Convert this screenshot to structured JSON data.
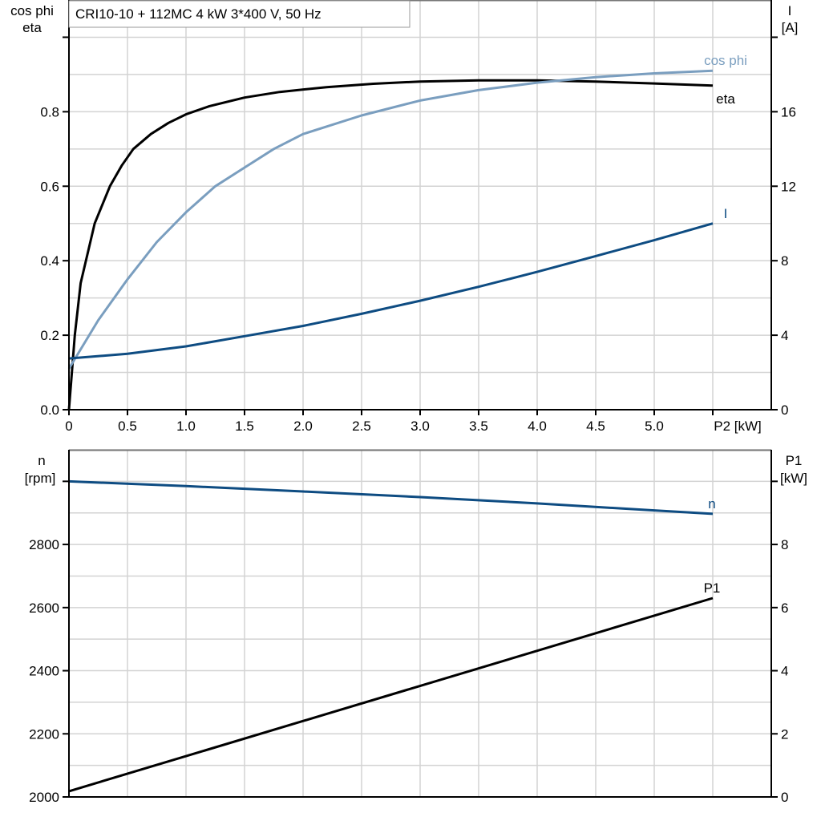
{
  "chart_data": [
    {
      "type": "line",
      "title": "CRI10-10 + 112MC   4 kW   3*400 V, 50 Hz",
      "xlabel": "P2 [kW]",
      "ylabel": [
        "cos phi",
        "eta"
      ],
      "y2label": [
        "I",
        "[A]"
      ],
      "xlim": [
        0,
        6
      ],
      "ylim": [
        0,
        1.1
      ],
      "y2lim": [
        0,
        22
      ],
      "xticks": [
        "0",
        "0.5",
        "1.0",
        "1.5",
        "2.0",
        "2.5",
        "3.0",
        "3.5",
        "4.0",
        "4.5",
        "5.0"
      ],
      "xtick_values": [
        0,
        0.5,
        1.0,
        1.5,
        2.0,
        2.5,
        3.0,
        3.5,
        4.0,
        4.5,
        5.0
      ],
      "yticks": [
        "0.0",
        "0.2",
        "0.4",
        "0.6",
        "0.8"
      ],
      "ytick_values": [
        0,
        0.2,
        0.4,
        0.6,
        0.8
      ],
      "y2ticks": [
        "0",
        "4",
        "8",
        "12",
        "16"
      ],
      "y2tick_values": [
        0,
        4,
        8,
        12,
        16
      ],
      "grid": true,
      "series": [
        {
          "name": "eta",
          "axis": "left",
          "color": "#000000",
          "x": [
            0,
            0.05,
            0.1,
            0.22,
            0.35,
            0.45,
            0.55,
            0.7,
            0.85,
            1.0,
            1.2,
            1.5,
            1.8,
            2.2,
            2.6,
            3.0,
            3.5,
            4.0,
            4.5,
            5.0,
            5.5
          ],
          "y": [
            0,
            0.2,
            0.34,
            0.5,
            0.6,
            0.655,
            0.7,
            0.74,
            0.77,
            0.793,
            0.815,
            0.838,
            0.853,
            0.866,
            0.875,
            0.881,
            0.884,
            0.884,
            0.881,
            0.876,
            0.87
          ]
        },
        {
          "name": "cos phi",
          "axis": "left",
          "color": "#7a9ebf",
          "x": [
            0,
            0.25,
            0.5,
            0.75,
            1.0,
            1.25,
            1.5,
            1.75,
            2.0,
            2.5,
            3.0,
            3.5,
            4.0,
            4.5,
            5.0,
            5.5
          ],
          "y": [
            0.11,
            0.24,
            0.35,
            0.45,
            0.53,
            0.6,
            0.65,
            0.7,
            0.74,
            0.79,
            0.83,
            0.858,
            0.878,
            0.893,
            0.903,
            0.91
          ]
        },
        {
          "name": "I",
          "axis": "right",
          "color": "#0e4c82",
          "x": [
            0,
            0.5,
            1.0,
            1.5,
            2.0,
            2.5,
            3.0,
            3.5,
            4.0,
            4.5,
            5.0,
            5.5
          ],
          "y": [
            2.75,
            3.0,
            3.4,
            3.95,
            4.5,
            5.15,
            5.85,
            6.6,
            7.4,
            8.25,
            9.1,
            10.0
          ]
        }
      ]
    },
    {
      "type": "line",
      "ylabel": [
        "n",
        "[rpm]"
      ],
      "y2label": [
        "P1",
        "[kW]"
      ],
      "xlim": [
        0,
        6
      ],
      "ylim": [
        2000,
        3100
      ],
      "y2lim": [
        0,
        11
      ],
      "yticks": [
        "2000",
        "2200",
        "2400",
        "2600",
        "2800"
      ],
      "ytick_values": [
        2000,
        2200,
        2400,
        2600,
        2800
      ],
      "y2ticks": [
        "0",
        "2",
        "4",
        "6",
        "8"
      ],
      "y2tick_values": [
        0,
        2,
        4,
        6,
        8
      ],
      "grid": true,
      "series": [
        {
          "name": "n",
          "axis": "left",
          "color": "#0e4c82",
          "x": [
            0,
            1,
            2,
            3,
            4,
            5,
            5.5
          ],
          "y": [
            3000,
            2985,
            2968,
            2950,
            2930,
            2908,
            2897
          ]
        },
        {
          "name": "P1",
          "axis": "right",
          "color": "#000000",
          "x": [
            0,
            5.5
          ],
          "y": [
            0.18,
            6.3
          ]
        }
      ]
    }
  ]
}
